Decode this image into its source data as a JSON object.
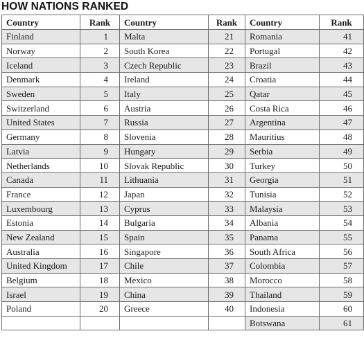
{
  "title": "HOW NATIONS RANKED",
  "headers": {
    "country": "Country",
    "rank": "Rank"
  },
  "rows": [
    [
      [
        "Finland",
        "1"
      ],
      [
        "Malta",
        "21"
      ],
      [
        "Romania",
        "41"
      ]
    ],
    [
      [
        "Norway",
        "2"
      ],
      [
        "South Korea",
        "22"
      ],
      [
        "Portugal",
        "42"
      ]
    ],
    [
      [
        "Iceland",
        "3"
      ],
      [
        "Czech Republic",
        "23"
      ],
      [
        "Brazil",
        "43"
      ]
    ],
    [
      [
        "Denmark",
        "4"
      ],
      [
        "Ireland",
        "24"
      ],
      [
        "Croatia",
        "44"
      ]
    ],
    [
      [
        "Sweden",
        "5"
      ],
      [
        "Italy",
        "25"
      ],
      [
        "Qatar",
        "45"
      ]
    ],
    [
      [
        "Switzerland",
        "6"
      ],
      [
        "Austria",
        "26"
      ],
      [
        "Costa Rica",
        "46"
      ]
    ],
    [
      [
        "United States",
        "7"
      ],
      [
        "Russia",
        "27"
      ],
      [
        "Argentina",
        "47"
      ]
    ],
    [
      [
        "Germany",
        "8"
      ],
      [
        "Slovenia",
        "28"
      ],
      [
        "Mauritius",
        "48"
      ]
    ],
    [
      [
        "Latvia",
        "9"
      ],
      [
        "Hungary",
        "29"
      ],
      [
        "Serbia",
        "49"
      ]
    ],
    [
      [
        "Netherlands",
        "10"
      ],
      [
        "Slovak Republic",
        "30"
      ],
      [
        "Turkey",
        "50"
      ]
    ],
    [
      [
        "Canada",
        "11"
      ],
      [
        "Lithuania",
        "31"
      ],
      [
        "Georgia",
        "51"
      ]
    ],
    [
      [
        "France",
        "12"
      ],
      [
        "Japan",
        "32"
      ],
      [
        "Tunisia",
        "52"
      ]
    ],
    [
      [
        "Luxembourg",
        "13"
      ],
      [
        "Cyprus",
        "33"
      ],
      [
        "Malaysia",
        "53"
      ]
    ],
    [
      [
        "Estonia",
        "14"
      ],
      [
        "Bulgaria",
        "34"
      ],
      [
        "Albania",
        "54"
      ]
    ],
    [
      [
        "New Zealand",
        "15"
      ],
      [
        "Spain",
        "35"
      ],
      [
        "Panama",
        "55"
      ]
    ],
    [
      [
        "Australia",
        "16"
      ],
      [
        "Singapore",
        "36"
      ],
      [
        "South Africa",
        "56"
      ]
    ],
    [
      [
        "United Kingdom",
        "17"
      ],
      [
        "Chile",
        "37"
      ],
      [
        "Colombia",
        "57"
      ]
    ],
    [
      [
        "Belgium",
        "18"
      ],
      [
        "Mexico",
        "38"
      ],
      [
        "Morocco",
        "58"
      ]
    ],
    [
      [
        "Israel",
        "19"
      ],
      [
        "China",
        "39"
      ],
      [
        "Thailand",
        "59"
      ]
    ],
    [
      [
        "Poland",
        "20"
      ],
      [
        "Greece",
        "40"
      ],
      [
        "Indonesia",
        "60"
      ]
    ],
    [
      [
        "",
        ""
      ],
      [
        "",
        ""
      ],
      [
        "Botswana",
        "61"
      ]
    ]
  ]
}
